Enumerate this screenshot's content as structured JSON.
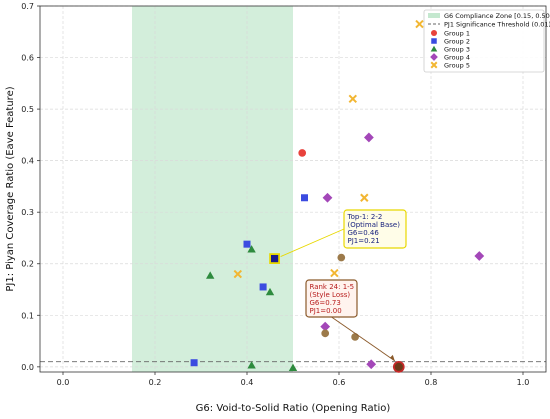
{
  "chart_data": {
    "type": "scatter",
    "xlabel": "G6: Void-to-Solid Ratio (Opening Ratio)",
    "ylabel": "PJ1: Piyan Coverage Ratio (Eave Feature)",
    "xlim": [
      -0.05,
      1.05
    ],
    "ylim": [
      -0.01,
      0.7
    ],
    "xticks": [
      0.0,
      0.2,
      0.4,
      0.6,
      0.8,
      1.0
    ],
    "xtick_labels": [
      "0.0",
      "0.2",
      "0.4",
      "0.6",
      "0.8",
      "1.0"
    ],
    "yticks": [
      0.0,
      0.1,
      0.2,
      0.3,
      0.4,
      0.5,
      0.6,
      0.7
    ],
    "ytick_labels": [
      "0.0",
      "0.1",
      "0.2",
      "0.3",
      "0.4",
      "0.5",
      "0.6",
      "0.7"
    ],
    "grid": true,
    "legend_position": "top-right",
    "compliance_zone": {
      "x_range": [
        0.15,
        0.5
      ],
      "label": "G6 Compliance Zone [0.15, 0.50]",
      "color": "#b5e2c3"
    },
    "threshold": {
      "y": 0.01,
      "label": "PJ1 Significance Threshold (0.01)",
      "color": "#666666"
    },
    "series": [
      {
        "name": "Group 1",
        "marker": "circle",
        "color": "#e8423c",
        "points": [
          [
            0.52,
            0.415
          ]
        ]
      },
      {
        "name": "Group 2",
        "marker": "square",
        "color": "#3b4be0",
        "points": [
          [
            0.525,
            0.328
          ],
          [
            0.4,
            0.238
          ],
          [
            0.435,
            0.155
          ],
          [
            0.285,
            0.008
          ]
        ]
      },
      {
        "name": "Group 3",
        "marker": "triangle",
        "color": "#2e8b3e",
        "points": [
          [
            0.41,
            0.228
          ],
          [
            0.32,
            0.177
          ],
          [
            0.45,
            0.145
          ],
          [
            0.41,
            0.003
          ],
          [
            0.5,
            -0.002
          ]
        ]
      },
      {
        "name": "Group 4",
        "marker": "diamond",
        "color": "#a347b8",
        "points": [
          [
            0.665,
            0.445
          ],
          [
            0.575,
            0.328
          ],
          [
            0.905,
            0.215
          ],
          [
            0.57,
            0.078
          ],
          [
            0.67,
            0.005
          ]
        ]
      },
      {
        "name": "Group 5",
        "marker": "x",
        "color": "#f2b632",
        "points": [
          [
            0.775,
            0.665
          ],
          [
            0.63,
            0.52
          ],
          [
            0.655,
            0.328
          ],
          [
            0.59,
            0.182
          ],
          [
            0.38,
            0.18
          ]
        ]
      }
    ],
    "other_points": [
      {
        "marker": "circle",
        "color": "#9c7a4a",
        "points": [
          [
            0.605,
            0.212
          ],
          [
            0.57,
            0.065
          ],
          [
            0.635,
            0.058
          ]
        ]
      }
    ],
    "highlights": [
      {
        "x": 0.46,
        "y": 0.21,
        "marker": "square",
        "color": "#1a1a8e",
        "edge": "#e8d800"
      },
      {
        "x": 0.73,
        "y": 0.0,
        "marker": "circle",
        "color": "#6b3a1a",
        "edge": "#c62828"
      }
    ],
    "annotations": [
      {
        "lines": [
          "Top-1: 2-2",
          "(Optimal Base)",
          "G6=0.46",
          "PJ1=0.21"
        ],
        "target": [
          0.46,
          0.21
        ],
        "text_color": "#1a237e",
        "border_color": "#e8d800",
        "bg": "#fffde8"
      },
      {
        "lines": [
          "Rank 24: 1-5",
          "(Style Loss)",
          "G6=0.73",
          "PJ1=0.00"
        ],
        "target": [
          0.73,
          0.0
        ],
        "text_color": "#b71c1c",
        "border_color": "#8b5a2b",
        "bg": "#fff3ee"
      }
    ]
  }
}
